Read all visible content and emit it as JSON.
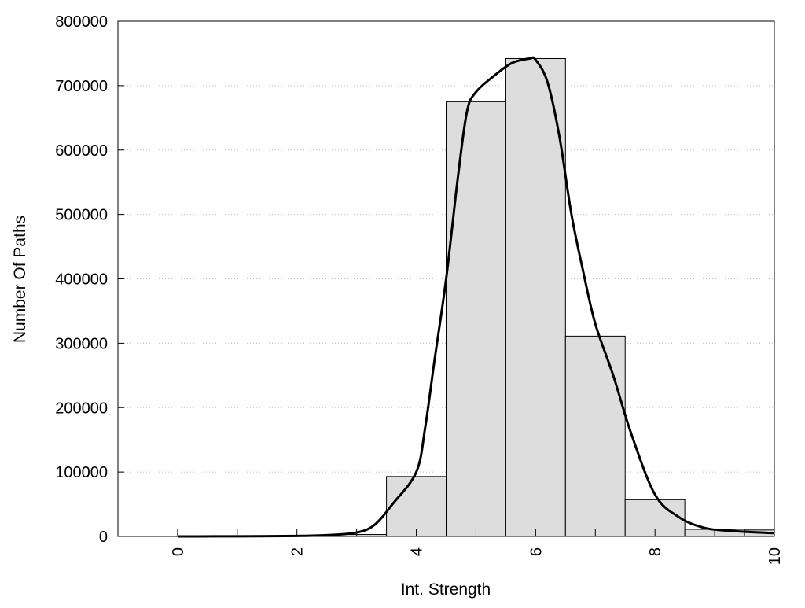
{
  "chart_data": {
    "type": "bar",
    "title": "",
    "xlabel": "Int. Strength",
    "ylabel": "Number Of Paths",
    "xlim": [
      -1,
      10
    ],
    "ylim": [
      0,
      800000
    ],
    "xticks": [
      0,
      2,
      4,
      6,
      8,
      10
    ],
    "yticks": [
      0,
      100000,
      200000,
      300000,
      400000,
      500000,
      600000,
      700000,
      800000
    ],
    "grid": "horizontal dotted",
    "bar_color": "#dddddd",
    "bars": {
      "x": [
        0,
        1,
        2,
        3,
        4,
        5,
        6,
        7,
        8,
        9,
        10
      ],
      "values": [
        500,
        500,
        1000,
        3000,
        93000,
        675000,
        742000,
        311000,
        57000,
        11000,
        10000
      ]
    },
    "curve": {
      "x": [
        0,
        1,
        2,
        2.5,
        3,
        3.3,
        3.6,
        4,
        4.15,
        4.3,
        4.5,
        4.7,
        4.85,
        5,
        5.3,
        5.6,
        5.9,
        6,
        6.2,
        6.4,
        6.6,
        6.8,
        7,
        7.3,
        7.6,
        8,
        8.4,
        8.8,
        9.2,
        10
      ],
      "values": [
        0,
        200,
        800,
        2000,
        6000,
        18000,
        50000,
        100000,
        170000,
        270000,
        400000,
        560000,
        660000,
        690000,
        715000,
        735000,
        742000,
        740000,
        705000,
        620000,
        500000,
        410000,
        330000,
        250000,
        160000,
        65000,
        30000,
        14000,
        9000,
        5000
      ]
    }
  }
}
